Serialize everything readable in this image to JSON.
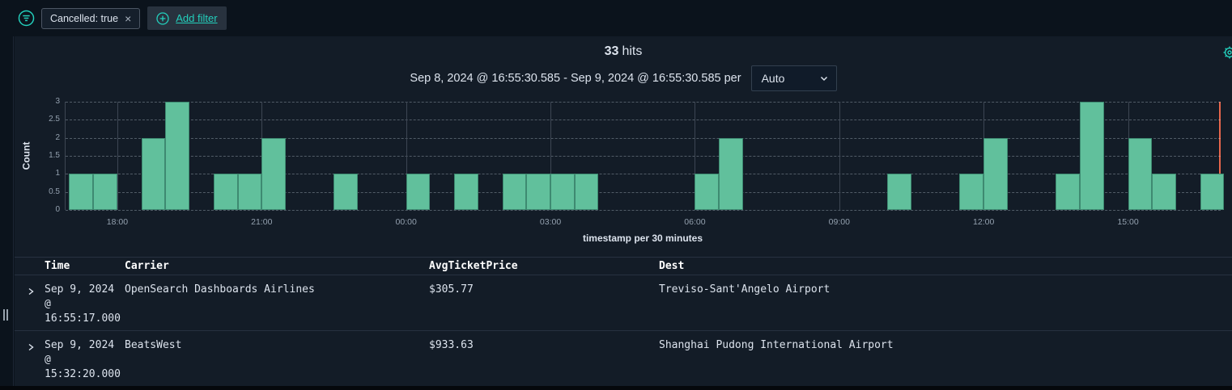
{
  "colors": {
    "accent": "#23cfbc",
    "bar": "#61c09c",
    "bar_border": "#3e8a71",
    "now_line": "#e7664c"
  },
  "filter_bar": {
    "pill": {
      "label": "Cancelled: true",
      "remove_symbol": "×"
    },
    "add_filter_label": "Add filter"
  },
  "header": {
    "hits_count": "33",
    "hits_label": "hits"
  },
  "time_range": {
    "label": "Sep 8, 2024 @ 16:55:30.585 - Sep 9, 2024 @ 16:55:30.585 per",
    "interval": "Auto"
  },
  "chart_data": {
    "type": "bar",
    "title": "33 hits",
    "ylabel": "Count",
    "xlabel": "timestamp per 30 minutes",
    "ylim": [
      0,
      3
    ],
    "y_ticks": [
      0,
      0.5,
      1,
      1.5,
      2,
      2.5,
      3
    ],
    "x_ticks": [
      "18:00",
      "21:00",
      "00:00",
      "03:00",
      "06:00",
      "09:00",
      "12:00",
      "15:00"
    ],
    "bucket_interval_minutes": 30,
    "range_start": "Sep 8, 2024 @ 16:55:30.585",
    "range_end": "Sep 9, 2024 @ 16:55:30.585",
    "first_bucket_start": "17:00",
    "values": [
      1,
      1,
      0,
      2,
      3,
      0,
      1,
      1,
      2,
      0,
      0,
      1,
      0,
      0,
      1,
      0,
      1,
      0,
      1,
      1,
      1,
      1,
      0,
      0,
      0,
      0,
      1,
      2,
      0,
      0,
      0,
      0,
      0,
      0,
      1,
      0,
      0,
      1,
      2,
      0,
      0,
      1,
      3,
      0,
      2,
      1,
      0,
      1
    ]
  },
  "table": {
    "columns": [
      "Time",
      "Carrier",
      "AvgTicketPrice",
      "Dest"
    ],
    "rows": [
      {
        "time": "Sep 9, 2024 @ 16:55:17.000",
        "carrier": "OpenSearch Dashboards Airlines",
        "avgticketprice": "$305.77",
        "dest": "Treviso-Sant'Angelo Airport"
      },
      {
        "time": "Sep 9, 2024 @ 15:32:20.000",
        "carrier": "BeatsWest",
        "avgticketprice": "$933.63",
        "dest": "Shanghai Pudong International Airport"
      }
    ]
  }
}
